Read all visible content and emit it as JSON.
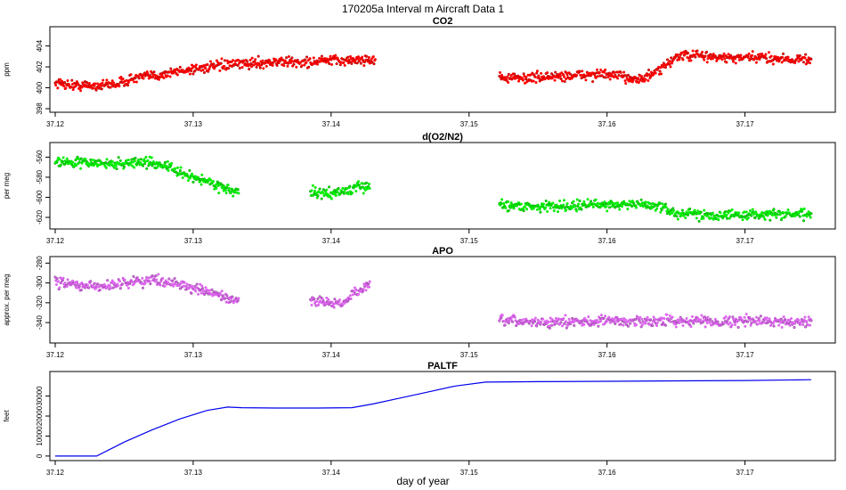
{
  "figure": {
    "title": "170205a   Interval m Aircraft Data 1",
    "xlabel": "day of year"
  },
  "chart_data": [
    {
      "type": "scatter",
      "title": "CO2",
      "ylabel": "ppm",
      "xlim": [
        37.12,
        37.175
      ],
      "ylim": [
        398,
        405.5
      ],
      "xticks": [
        "37.12",
        "37.13",
        "37.14",
        "37.15",
        "37.16",
        "37.17"
      ],
      "yticks": [
        "398",
        "400",
        "402",
        "404"
      ],
      "color": "#ff0000",
      "segments": [
        {
          "x": [
            37.12,
            37.1215,
            37.123,
            37.1245,
            37.126,
            37.1275,
            37.129,
            37.1305,
            37.132,
            37.1335,
            37.135,
            37.1365,
            37.138,
            37.1395,
            37.141,
            37.1425,
            37.1432
          ],
          "y": [
            400.5,
            400.2,
            400.2,
            400.4,
            401.0,
            401.2,
            401.6,
            401.9,
            402.1,
            402.3,
            402.4,
            402.5,
            402.4,
            402.6,
            402.6,
            402.7,
            402.7
          ]
        },
        {
          "x": [
            37.1522,
            37.1535,
            37.155,
            37.1565,
            37.158,
            37.1595,
            37.161,
            37.1625,
            37.1638,
            37.165,
            37.1665,
            37.168,
            37.1695,
            37.171,
            37.1725,
            37.174,
            37.1748
          ],
          "y": [
            401.0,
            400.9,
            401.0,
            401.1,
            401.2,
            401.3,
            401.1,
            400.8,
            401.6,
            403.0,
            403.1,
            402.9,
            402.8,
            402.9,
            402.8,
            402.7,
            402.7
          ]
        }
      ]
    },
    {
      "type": "scatter",
      "title": "d(O2/N2)",
      "ylabel": "per meg",
      "xlim": [
        37.12,
        37.175
      ],
      "ylim": [
        -628,
        -549
      ],
      "xticks": [
        "37.12",
        "37.13",
        "37.14",
        "37.15",
        "37.16",
        "37.17"
      ],
      "yticks": [
        "-560",
        "-580",
        "-600",
        "-620"
      ],
      "color": "#00ee00",
      "segments": [
        {
          "x": [
            37.12,
            37.121,
            37.122,
            37.123,
            37.124,
            37.125,
            37.126,
            37.127,
            37.128,
            37.129,
            37.13,
            37.131,
            37.132,
            37.1333
          ],
          "y": [
            -563,
            -566,
            -565,
            -566,
            -567,
            -566,
            -565,
            -566,
            -568,
            -576,
            -580,
            -584,
            -589,
            -596
          ]
        },
        {
          "x": [
            37.1385,
            37.139,
            37.14,
            37.141,
            37.142,
            37.1428
          ],
          "y": [
            -595,
            -596,
            -596,
            -594,
            -590,
            -589
          ]
        },
        {
          "x": [
            37.1522,
            37.154,
            37.156,
            37.158,
            37.16,
            37.162,
            37.1635,
            37.165,
            37.167,
            37.169,
            37.171,
            37.173,
            37.1748
          ],
          "y": [
            -607,
            -609,
            -609,
            -608,
            -607,
            -607,
            -608,
            -616,
            -617,
            -618,
            -617,
            -617,
            -617
          ]
        }
      ]
    },
    {
      "type": "scatter",
      "title": "APO",
      "ylabel": "approx. per meg",
      "xlim": [
        37.12,
        37.175
      ],
      "ylim": [
        -357,
        -277
      ],
      "xticks": [
        "37.12",
        "37.13",
        "37.14",
        "37.15",
        "37.16",
        "37.17"
      ],
      "yticks": [
        "-280",
        "-300",
        "-320",
        "-340"
      ],
      "color": "#dd66ee",
      "segments": [
        {
          "x": [
            37.12,
            37.121,
            37.122,
            37.123,
            37.124,
            37.125,
            37.126,
            37.127,
            37.128,
            37.129,
            37.13,
            37.131,
            37.132,
            37.1333
          ],
          "y": [
            -299,
            -301,
            -303,
            -304,
            -302,
            -300,
            -298,
            -297,
            -298,
            -301,
            -306,
            -309,
            -313,
            -320
          ]
        },
        {
          "x": [
            37.1385,
            37.139,
            37.14,
            37.1408,
            37.1416,
            37.1422,
            37.1428
          ],
          "y": [
            -316,
            -318,
            -320,
            -322,
            -311,
            -306,
            -304
          ]
        },
        {
          "x": [
            37.1522,
            37.154,
            37.156,
            37.158,
            37.16,
            37.162,
            37.164,
            37.166,
            37.168,
            37.17,
            37.172,
            37.1748
          ],
          "y": [
            -338,
            -339,
            -340,
            -339,
            -338,
            -339,
            -338,
            -338,
            -339,
            -338,
            -339,
            -339
          ]
        }
      ]
    },
    {
      "type": "line",
      "title": "PALTF",
      "ylabel": "feet",
      "xlim": [
        37.12,
        37.175
      ],
      "ylim": [
        -500,
        40500
      ],
      "xticks": [
        "37.12",
        "37.13",
        "37.14",
        "37.15",
        "37.16",
        "37.17"
      ],
      "yticks": [
        "0",
        "10000",
        "20000",
        "30000"
      ],
      "color": "#0000ee",
      "x": [
        37.12,
        37.123,
        37.125,
        37.127,
        37.129,
        37.131,
        37.1325,
        37.1335,
        37.136,
        37.139,
        37.1415,
        37.143,
        37.145,
        37.147,
        37.149,
        37.1512,
        37.155,
        37.16,
        37.165,
        37.17,
        37.1748
      ],
      "y": [
        0,
        0,
        7000,
        13000,
        18500,
        22800,
        24500,
        24200,
        24000,
        24000,
        24200,
        26000,
        29000,
        32000,
        35000,
        37000,
        37200,
        37400,
        37600,
        37800,
        38200
      ]
    }
  ]
}
